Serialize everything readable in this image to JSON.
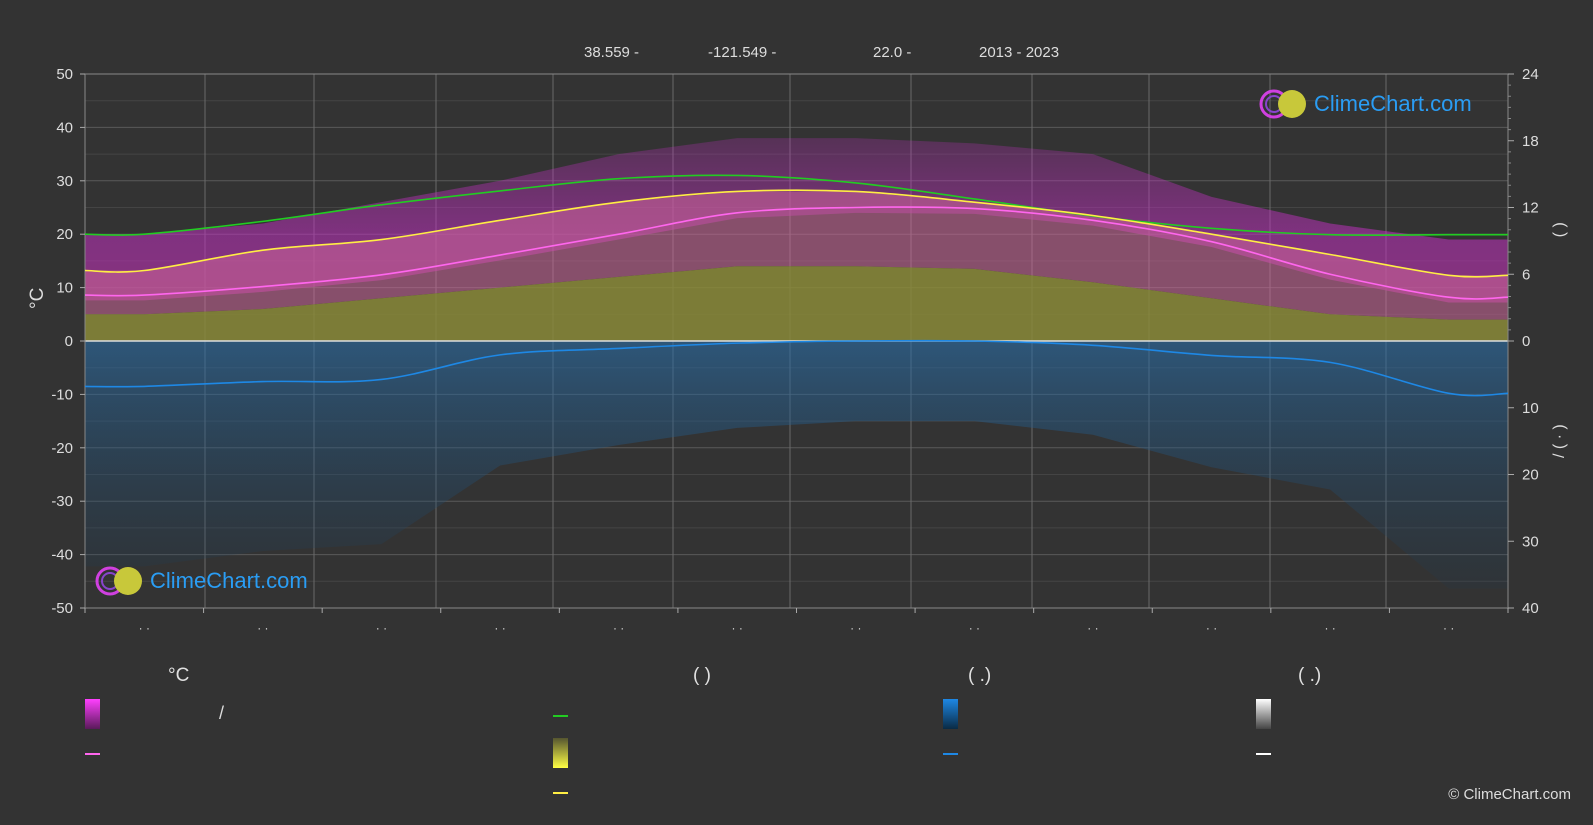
{
  "header": {
    "lat": "38.559 -",
    "lon": "-121.549 -",
    "elev": "22.0 -",
    "years": "2013 - 2023"
  },
  "brand": {
    "logo_text": "ClimeChart.com",
    "copyright": "© ClimeChart.com"
  },
  "legend": {
    "col1_head": "°C",
    "col1_item1": "/",
    "col2_head": "(          )",
    "col3_head": "(    .)",
    "col4_head": "(    .)"
  },
  "colors": {
    "background": "#333333",
    "daylight": "#22cc22",
    "sunshine": "#ffee44",
    "tmax_band": "#e040e0",
    "tavg": "#ff66ee",
    "tavg_band": "#cc6699",
    "sun_band": "#9a9a3a",
    "precip": "#1e88e5"
  },
  "chart_data": {
    "type": "line",
    "months": 12,
    "x_tick_labels": [
      "· ·",
      "· ·",
      "· ·",
      "· ·",
      "· ·",
      "· ·",
      "· ·",
      "· ·",
      "· ·",
      "· ·",
      "· ·",
      "· ·"
    ],
    "left_axis": {
      "label": "°C",
      "range": [
        -50,
        50
      ],
      "ticks": [
        50,
        40,
        30,
        20,
        10,
        0,
        -10,
        -20,
        -30,
        -40,
        -50
      ]
    },
    "right_axis_top": {
      "label": "(    )",
      "range": [
        0,
        24
      ],
      "ticks": [
        24,
        18,
        12,
        6,
        0
      ]
    },
    "right_axis_bottom": {
      "label": "/ (  ·  )",
      "range": [
        0,
        40
      ],
      "ticks": [
        10,
        20,
        30,
        40
      ]
    },
    "series": [
      {
        "key": "daylight",
        "values": [
          20.0,
          22.4,
          25.5,
          28.1,
          30.4,
          31.0,
          29.6,
          26.6,
          23.4,
          21.1,
          19.9,
          19.9
        ]
      },
      {
        "key": "sunshine",
        "values": [
          13.2,
          17.0,
          19.0,
          22.6,
          26.0,
          28.0,
          28.0,
          26.0,
          23.5,
          20.0,
          16.2,
          12.3
        ]
      },
      {
        "key": "tavg",
        "values": [
          8.6,
          10.2,
          12.4,
          16.1,
          20.0,
          24.0,
          25.0,
          24.8,
          22.6,
          18.6,
          12.5,
          8.2
        ]
      },
      {
        "key": "precip",
        "values": [
          -8.5,
          -7.6,
          -7.2,
          -2.6,
          -1.4,
          -0.4,
          0.0,
          0.0,
          -0.8,
          -2.7,
          -4.0,
          -9.8
        ]
      },
      {
        "key": "tmax_top",
        "values": [
          20.0,
          22.0,
          26.0,
          30.0,
          35.0,
          38.0,
          38.0,
          37.0,
          35.0,
          27.0,
          22.0,
          19.0
        ]
      },
      {
        "key": "sun_band_top",
        "values": [
          5.0,
          6.0,
          8.0,
          10.0,
          12.0,
          14.0,
          14.0,
          13.5,
          11.0,
          8.0,
          5.0,
          4.0
        ]
      }
    ]
  }
}
